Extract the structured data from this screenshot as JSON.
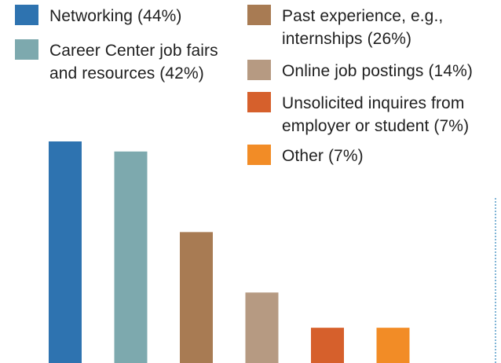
{
  "chart_data": {
    "type": "bar",
    "categories": [
      "Networking (44%)",
      "Career Center job fairs\nand resources (42%)",
      "Past experience, e.g.,\ninternships (26%)",
      "Online job postings (14%)",
      "Unsolicited inquires from\nemployer or student (7%)",
      "Other (7%)"
    ],
    "values": [
      44,
      42,
      26,
      14,
      7,
      7
    ],
    "colors": [
      "#2e73b0",
      "#7da9ae",
      "#a87b53",
      "#b69a82",
      "#d6602c",
      "#f28c26"
    ],
    "ylim": [
      0,
      44
    ],
    "legend": "top"
  }
}
